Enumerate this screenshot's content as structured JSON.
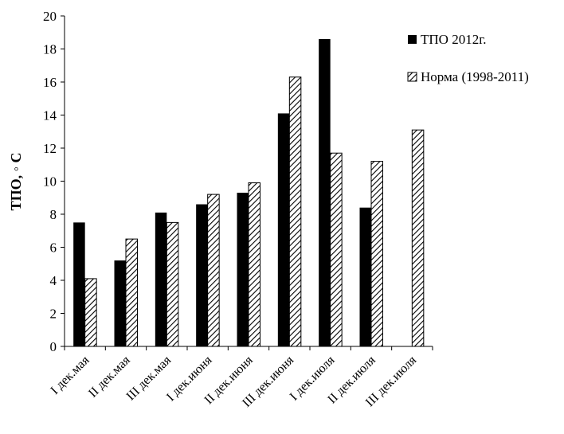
{
  "chart_data": {
    "type": "bar",
    "ylabel": "ТПО, ◦ С",
    "xlabel": "",
    "ylim": [
      0,
      20
    ],
    "ytick_step": 2,
    "categories": [
      "I дек.мая",
      "II дек.мая",
      "III дек.мая",
      "I дек.июня",
      "II дек.июня",
      "III дек.июня",
      "I дек.июля",
      "II дек.июля",
      "III дек.июля"
    ],
    "series": [
      {
        "name": "ТПО 2012г.",
        "values": [
          7.5,
          5.2,
          8.1,
          8.6,
          9.3,
          14.1,
          18.6,
          8.4,
          null
        ]
      },
      {
        "name": "Норма (1998-2011)",
        "values": [
          4.1,
          6.5,
          7.5,
          9.2,
          9.9,
          16.3,
          11.7,
          11.2,
          13.1
        ]
      }
    ],
    "legend": "right",
    "grid": false,
    "colors": {
      "series1": "#000000",
      "series2_hatch": "#000000",
      "axis": "#000000"
    }
  }
}
